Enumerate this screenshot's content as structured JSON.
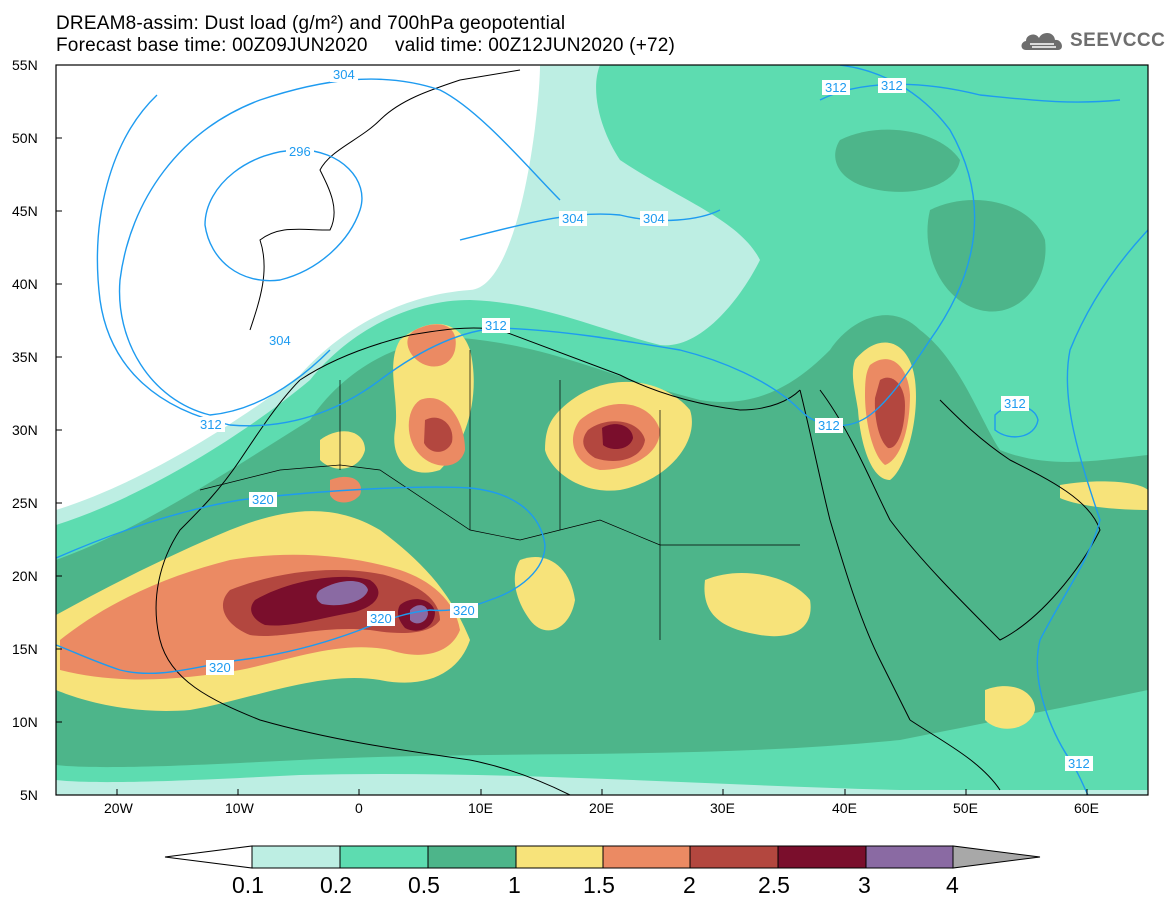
{
  "title": {
    "line1": "DREAM8-assim: Dust load (g/m²) and 700hPa geopotential",
    "line2": "Forecast base time: 00Z09JUN2020     valid time: 00Z12JUN2020 (+72)"
  },
  "logo": {
    "text": "SEEVCCC",
    "icon": "cloud-icon"
  },
  "map": {
    "lon_range": [
      -25,
      65
    ],
    "lat_range": [
      5,
      55
    ],
    "lat_ticks": [
      "55N",
      "50N",
      "45N",
      "40N",
      "35N",
      "30N",
      "25N",
      "20N",
      "15N",
      "10N",
      "5N"
    ],
    "lon_ticks": [
      "20W",
      "10W",
      "0",
      "10E",
      "20E",
      "30E",
      "40E",
      "50E",
      "60E"
    ],
    "contour_labels": [
      "304",
      "312",
      "312",
      "296",
      "304",
      "304",
      "304",
      "312",
      "312",
      "312",
      "312",
      "320",
      "320",
      "320",
      "320",
      "312"
    ],
    "contour_color": "#1e9bf0"
  },
  "colorbar": {
    "levels": [
      "0.1",
      "0.2",
      "0.5",
      "1",
      "1.5",
      "2",
      "2.5",
      "3",
      "4"
    ],
    "colors": [
      "#ffffff",
      "#bdeee3",
      "#5ddcb0",
      "#4db58a",
      "#f7e37a",
      "#eb8a63",
      "#b3473f",
      "#7a0e2c",
      "#8a6aa3",
      "#a8a8a8"
    ]
  }
}
